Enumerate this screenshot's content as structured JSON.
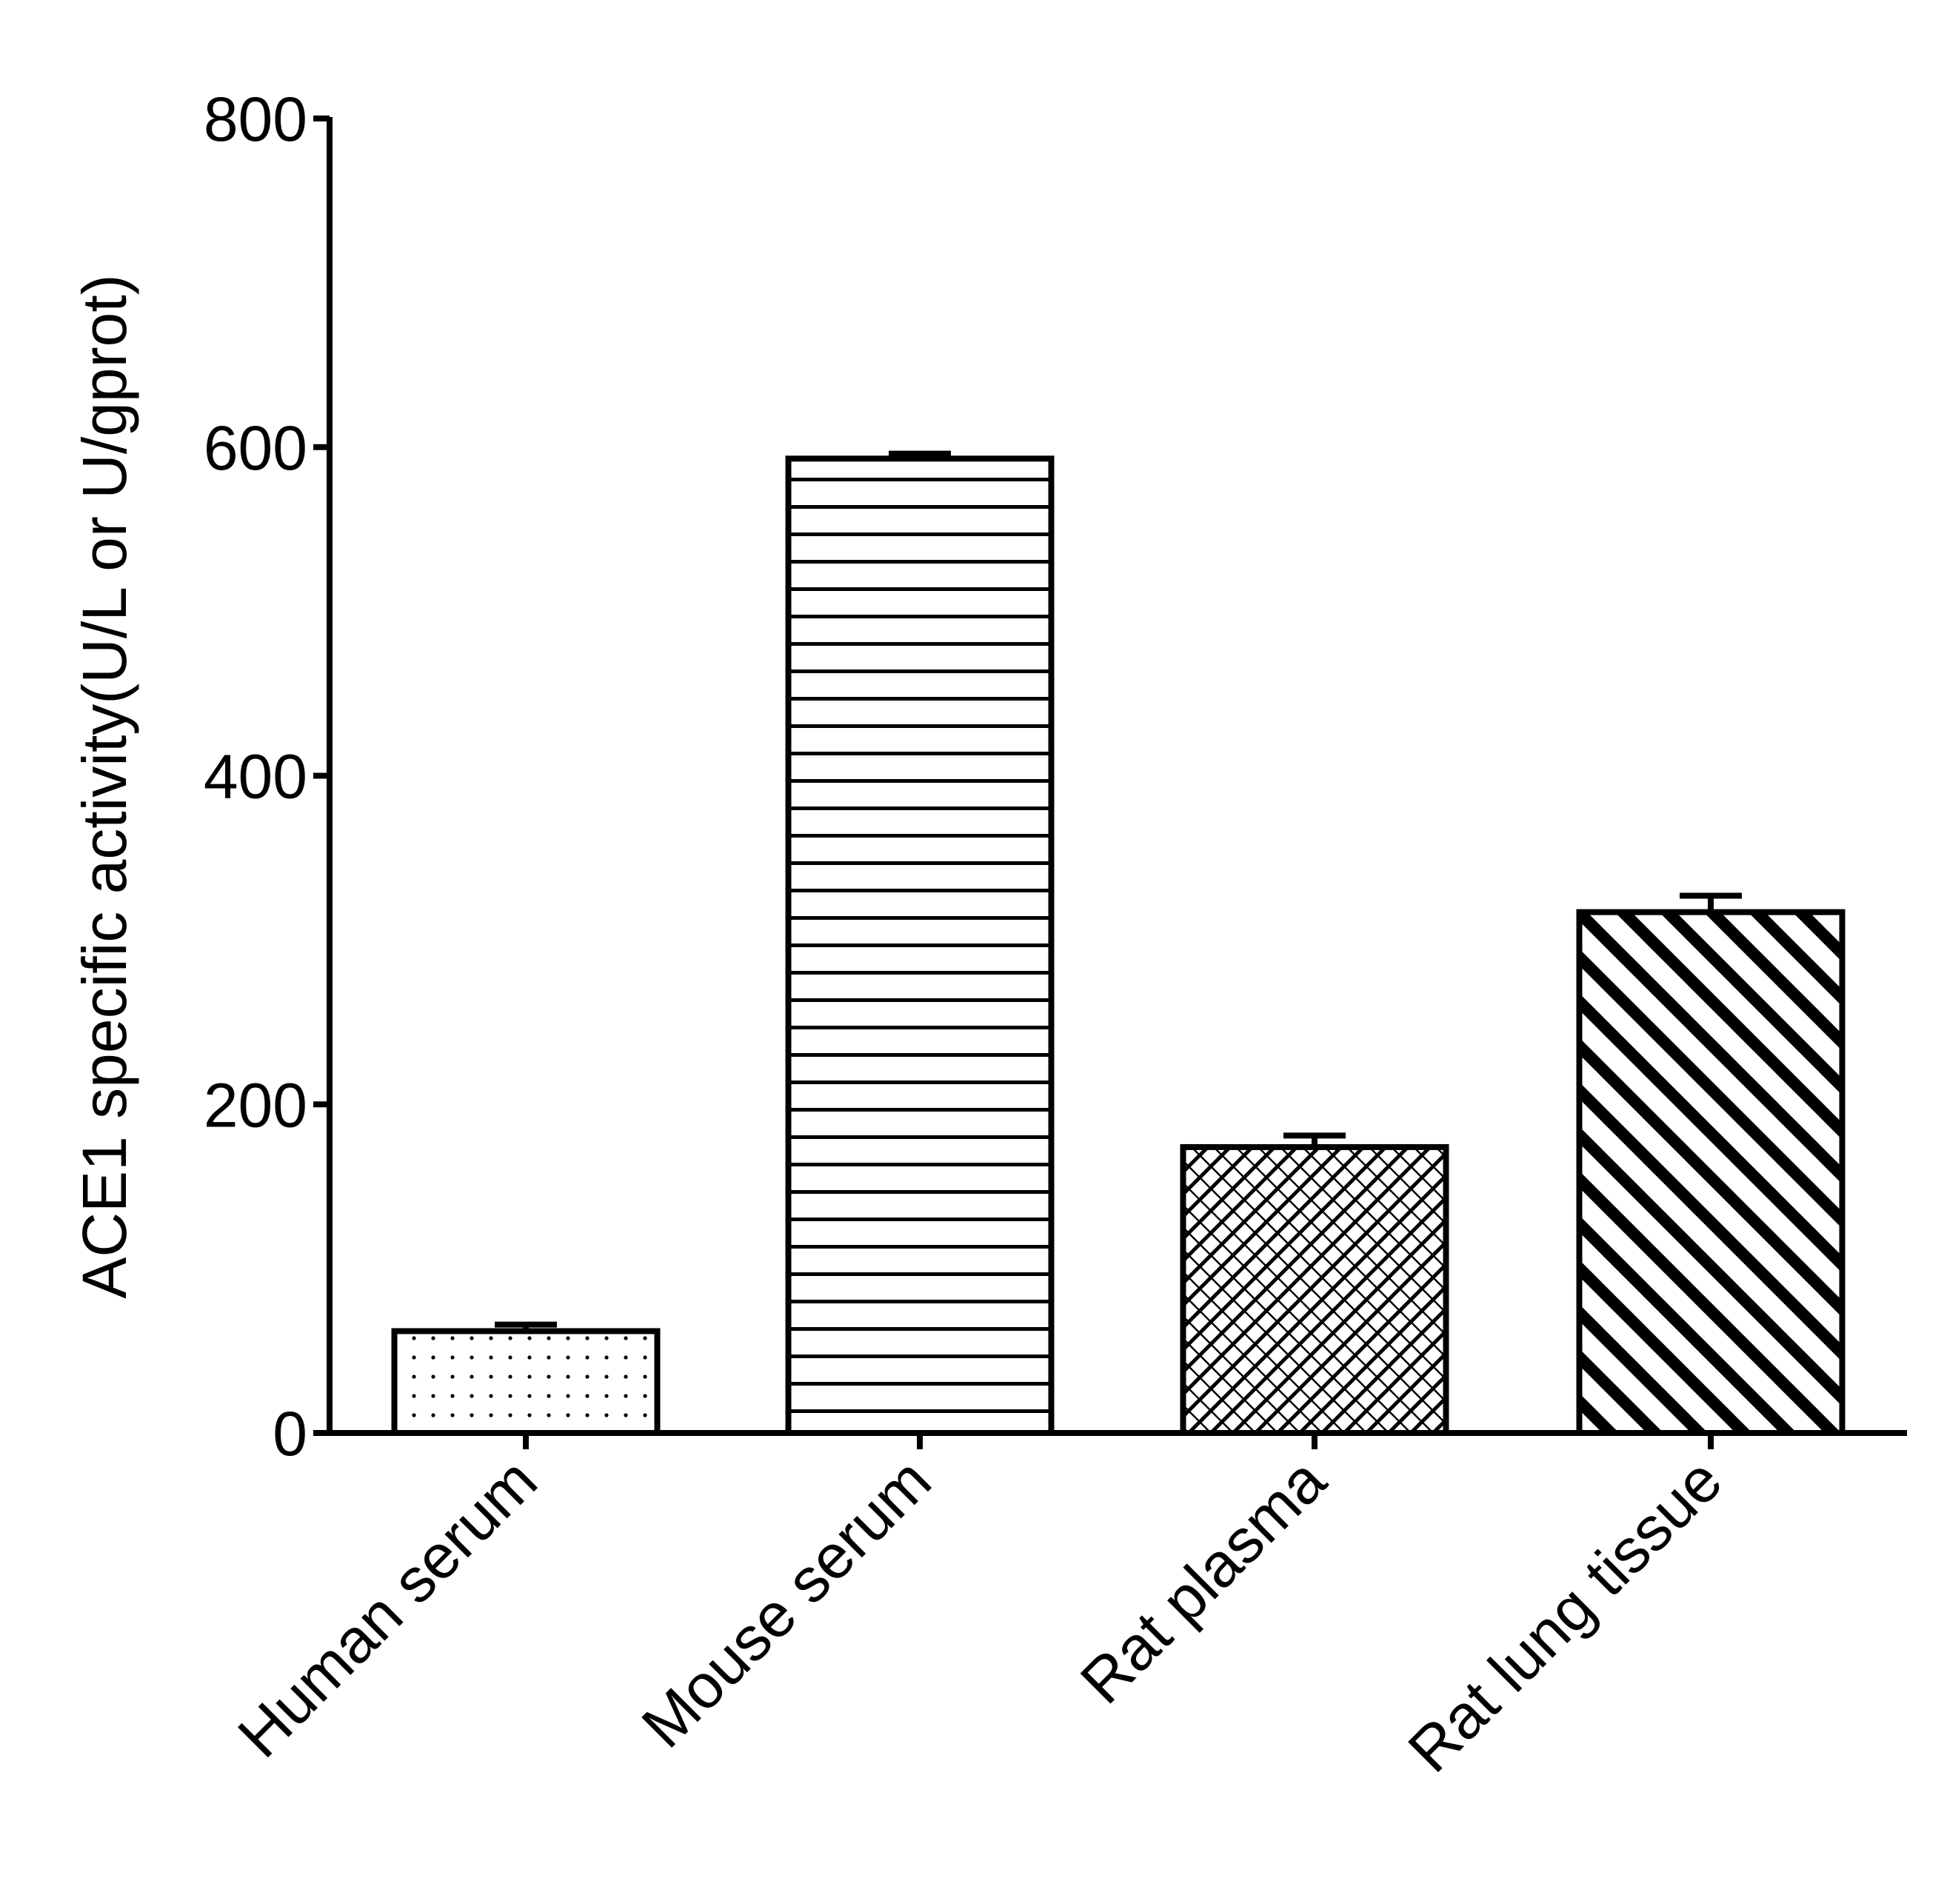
{
  "chart_data": {
    "type": "bar",
    "title": "",
    "xlabel": "",
    "ylabel": "ACE1 specific activity(U/L or U/gprot)",
    "ylim": [
      0,
      800
    ],
    "yticks": [
      0,
      200,
      400,
      600,
      800
    ],
    "grid": false,
    "legend": "none",
    "categories": [
      "Human serum",
      "Mouse serum",
      "Rat plasma",
      "Rat lung tissue"
    ],
    "values": [
      62,
      593,
      174,
      317
    ],
    "error_bars": [
      4,
      3,
      7,
      10
    ],
    "fill_patterns": [
      "dots",
      "horizontal-lines",
      "crosshatch",
      "diagonal-stripes"
    ],
    "colors": {
      "bar_stroke": "#000000",
      "bar_fill": "#ffffff",
      "axis": "#000000"
    }
  }
}
